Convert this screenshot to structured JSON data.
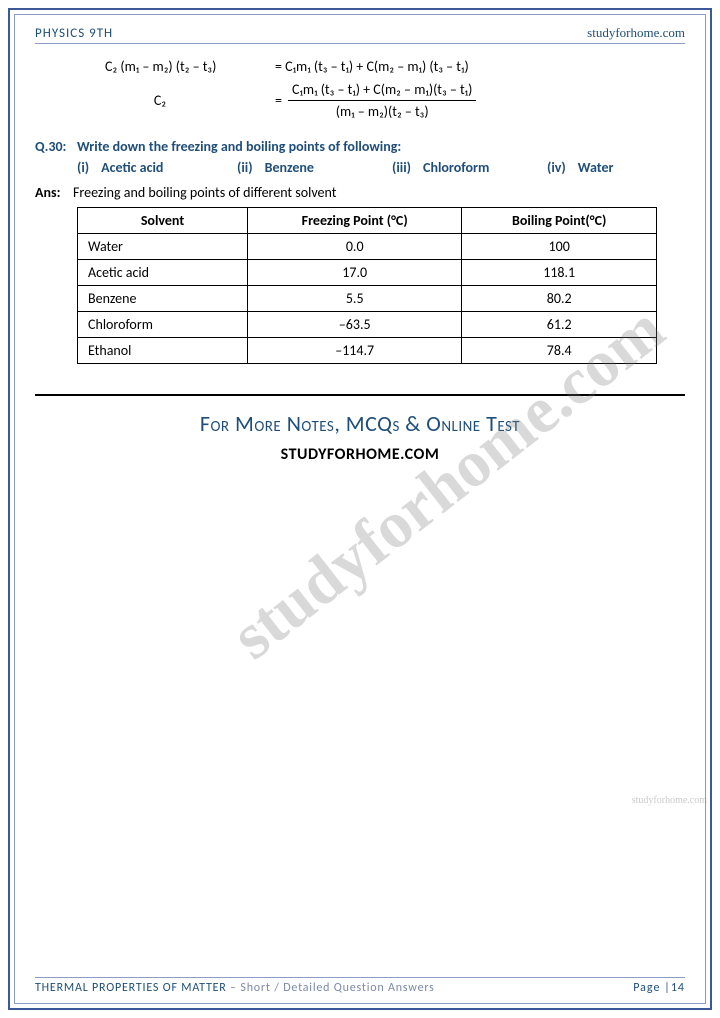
{
  "header": {
    "left": "PHYSICS 9TH",
    "right": "studyforhome.com"
  },
  "equations": {
    "row1": {
      "lhs": "C₂ (m₁ – m₂) (t₂ – t₃)",
      "rhs": "= C₁m₁ (t₃ – t₁) + C(m₂ – m₁) (t₃ – t₁)"
    },
    "row2": {
      "lhs": "C₂",
      "eq": "=",
      "num": "C₁m₁ (t₃ – t₁) + C(m₂ – m₁)(t₃ – t₁)",
      "den": "(m₁ – m₂)(t₂ – t₃)"
    }
  },
  "question": {
    "num": "Q.30:",
    "text": "Write down the freezing and boiling points of following:",
    "opts": [
      {
        "n": "(i)",
        "t": "Acetic acid"
      },
      {
        "n": "(ii)",
        "t": "Benzene"
      },
      {
        "n": "(iii)",
        "t": "Chloroform"
      },
      {
        "n": "(iv)",
        "t": "Water"
      }
    ]
  },
  "answer": {
    "label": "Ans:",
    "text": "Freezing and boiling points of different solvent"
  },
  "table": {
    "headers": [
      "Solvent",
      "Freezing Point (°C)",
      "Boiling Point(°C)"
    ],
    "rows": [
      [
        "Water",
        "0.0",
        "100"
      ],
      [
        "Acetic acid",
        "17.0",
        "118.1"
      ],
      [
        "Benzene",
        "5.5",
        "80.2"
      ],
      [
        "Chloroform",
        "–63.5",
        "61.2"
      ],
      [
        "Ethanol",
        "–114.7",
        "78.4"
      ]
    ]
  },
  "promo": {
    "line1": "For More Notes, MCQs & Online Test",
    "line2": "STUDYFORHOME.COM"
  },
  "watermark": "studyforhome.com",
  "side_watermark": "studyforhome.com",
  "footer": {
    "chapter": "THERMAL PROPERTIES OF MATTER",
    "sub": " – Short / Detailed Question Answers",
    "page_label": "Page ",
    "bar": "|",
    "page_num": "14"
  }
}
